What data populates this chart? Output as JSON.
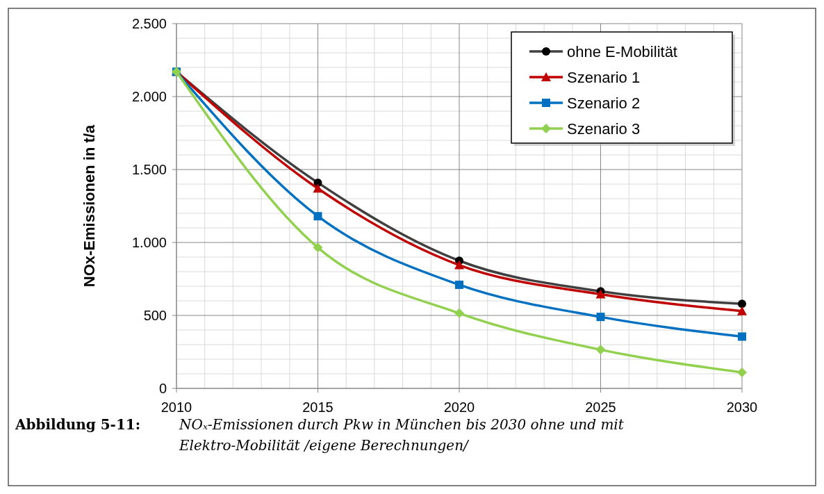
{
  "chart_data": {
    "type": "line",
    "ylabel": "NOx-Emissionen in t/a",
    "x": [
      2010,
      2015,
      2020,
      2025,
      2030
    ],
    "series": [
      {
        "name": "ohne E-Mobilität",
        "color": "#404040",
        "marker": "circle",
        "values": [
          2170,
          1410,
          875,
          665,
          580
        ]
      },
      {
        "name": "Szenario 1",
        "color": "#c00000",
        "marker": "triangle",
        "values": [
          2170,
          1370,
          845,
          645,
          530
        ]
      },
      {
        "name": "Szenario 2",
        "color": "#0070c0",
        "marker": "square",
        "values": [
          2170,
          1180,
          710,
          490,
          355
        ]
      },
      {
        "name": "Szenario 3",
        "color": "#92d050",
        "marker": "diamond",
        "values": [
          2170,
          965,
          515,
          265,
          110
        ]
      }
    ],
    "xlim": [
      2010,
      2030
    ],
    "xticks": [
      2010,
      2015,
      2020,
      2025,
      2030
    ],
    "ylim": [
      0,
      2500
    ],
    "yticks": [
      0,
      500,
      {
        "value": 1000,
        "label": "1.000"
      },
      {
        "value": 1500,
        "label": "1.500"
      },
      {
        "value": 2000,
        "label": "2.000"
      },
      {
        "value": 2500,
        "label": "2.500"
      }
    ],
    "grid": true,
    "legend": "top right",
    "line_style": "solid",
    "annotations": [
      "Abbildung 5-11:",
      "NOₓ-Emissionen durch Pkw in München bis 2030 ohne und mit Elektro-Mobilität /eigene Berechnungen/"
    ]
  }
}
